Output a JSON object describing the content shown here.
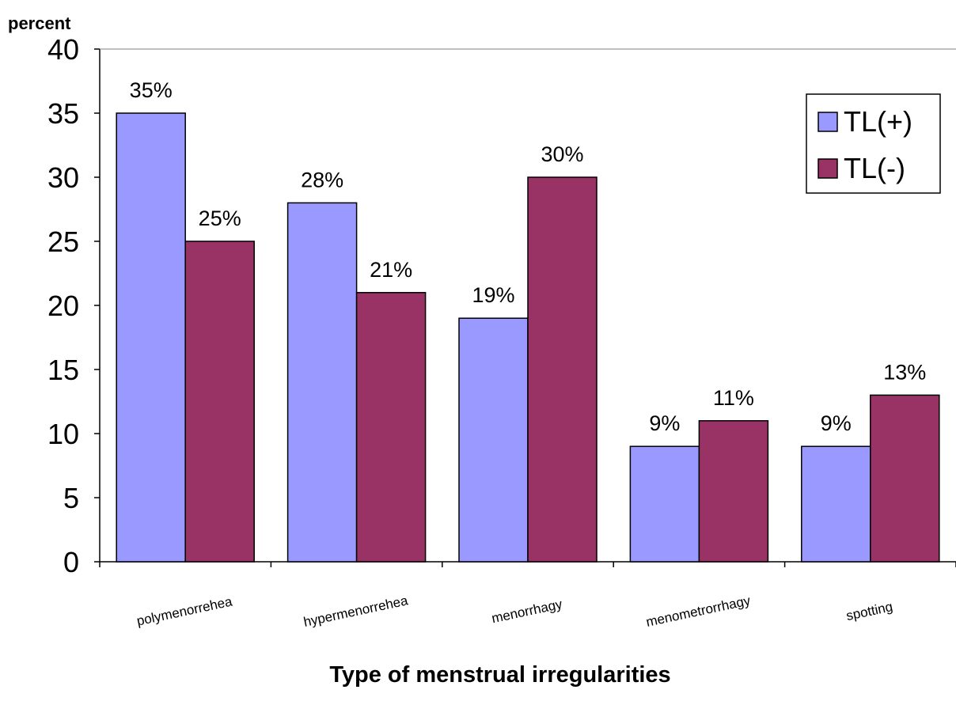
{
  "chart_data": {
    "type": "bar",
    "ylabel": "percent",
    "xlabel": "Type of menstrual irregularities",
    "categories": [
      "polymenorrehea",
      "hypermenorrehea",
      "menorrhagy",
      "menometrorrhagy",
      "spotting"
    ],
    "series": [
      {
        "name": "TL(+)",
        "color": "#9999ff",
        "values": [
          35,
          28,
          19,
          9,
          9
        ],
        "labels": [
          "35%",
          "28%",
          "19%",
          "9%",
          "9%"
        ]
      },
      {
        "name": "TL(-)",
        "color": "#993366",
        "values": [
          25,
          21,
          30,
          11,
          13
        ],
        "labels": [
          "25%",
          "21%",
          "30%",
          "11%",
          "13%"
        ]
      }
    ],
    "ylim": [
      0,
      40
    ],
    "yticks": [
      "0",
      "5",
      "10",
      "15",
      "20",
      "25",
      "30",
      "35",
      "40"
    ],
    "grid": false,
    "legend_position": "top-right"
  }
}
